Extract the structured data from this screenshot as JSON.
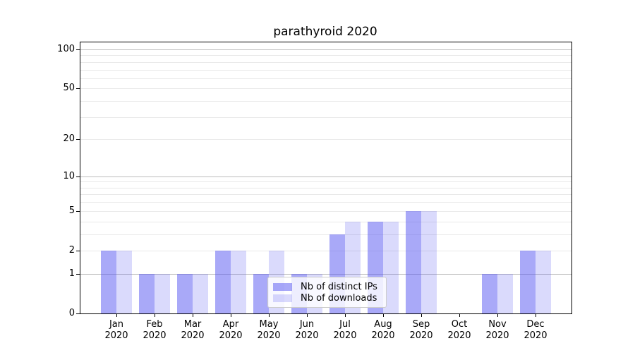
{
  "chart_data": {
    "type": "bar",
    "title": "parathyroid 2020",
    "x_tick_labels": [
      [
        "Jan",
        "2020"
      ],
      [
        "Feb",
        "2020"
      ],
      [
        "Mar",
        "2020"
      ],
      [
        "Apr",
        "2020"
      ],
      [
        "May",
        "2020"
      ],
      [
        "Jun",
        "2020"
      ],
      [
        "Jul",
        "2020"
      ],
      [
        "Aug",
        "2020"
      ],
      [
        "Sep",
        "2020"
      ],
      [
        "Oct",
        "2020"
      ],
      [
        "Nov",
        "2020"
      ],
      [
        "Dec",
        "2020"
      ]
    ],
    "series": [
      {
        "name": "Nb of distinct IPs",
        "color": "rgba(80,80,240,0.49)",
        "values": [
          2,
          1,
          1,
          2,
          1,
          1,
          3,
          4,
          5,
          0,
          1,
          2
        ]
      },
      {
        "name": "Nb of downloads",
        "color": "rgba(80,80,240,0.21)",
        "values": [
          2,
          1,
          1,
          2,
          2,
          1,
          4,
          4,
          5,
          0,
          1,
          2
        ]
      }
    ],
    "scale": "log10(1+y)",
    "ylim": [
      0,
      113.3
    ],
    "y_tick_values": [
      0,
      1,
      2,
      5,
      10,
      20,
      50,
      100
    ],
    "major_gridlines": [
      1,
      10,
      100
    ],
    "minor_gridlines": [
      2,
      3,
      4,
      5,
      6,
      7,
      8,
      9,
      20,
      30,
      40,
      50,
      60,
      70,
      80,
      90
    ],
    "grid": "on",
    "legend_position": "lower center, over plot",
    "colors": {
      "major_grid": "#bdbdbd",
      "minor_grid": "#e9e9e9",
      "axis": "#000000",
      "background": "#ffffff"
    }
  }
}
